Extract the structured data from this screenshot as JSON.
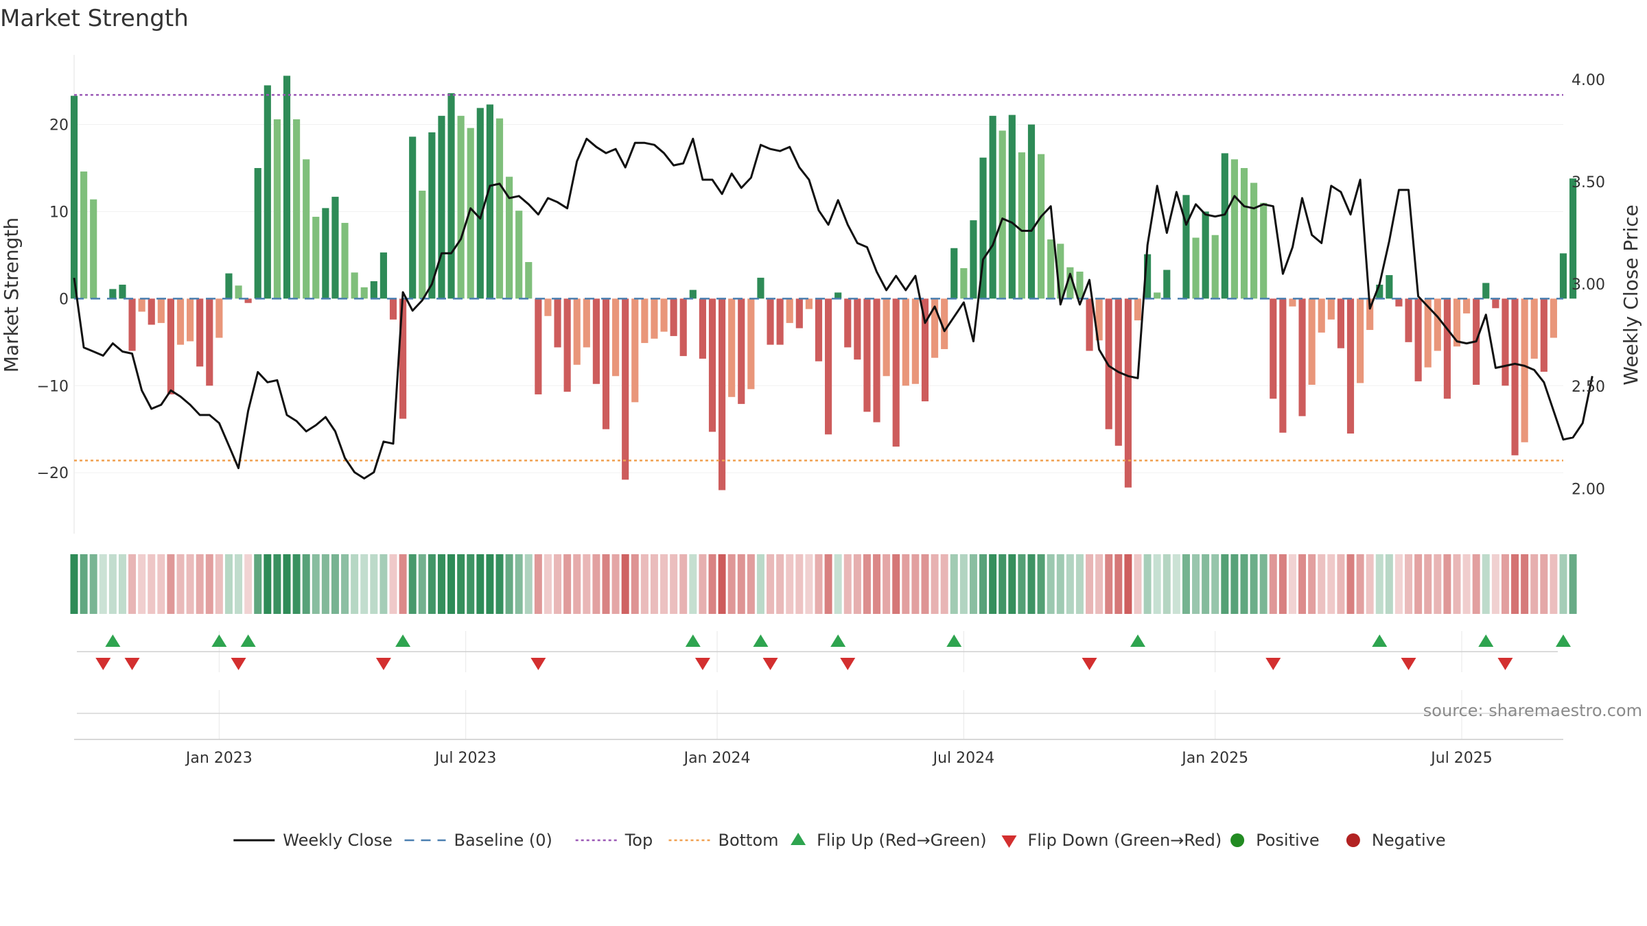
{
  "title": "Market Strength",
  "source": "source: sharemaestro.com",
  "colors": {
    "pos_dark": "#2e8b57",
    "pos_light": "#7fbf7b",
    "neg_dark": "#cd5c5c",
    "neg_light": "#e9967a",
    "line": "#111111",
    "baseline": "#4a7fb0",
    "top": "#9b59b6",
    "bottom": "#f0a050",
    "flip_up": "#2ea44f",
    "flip_down": "#d32f2f",
    "positive": "#228b22",
    "negative": "#b22222"
  },
  "chart_data": {
    "type": "bar",
    "title": "Market Strength",
    "ylabel": "Market Strength",
    "y2label": "Weekly Close Price",
    "ylim": [
      -27,
      28
    ],
    "y2lim": [
      1.78,
      4.12
    ],
    "yticks": [
      20,
      10,
      0,
      -10,
      -20
    ],
    "ytick_labels": [
      "20",
      "10",
      "0",
      "−10",
      "−20"
    ],
    "y2ticks": [
      4.0,
      3.5,
      3.0,
      2.5,
      2.0
    ],
    "y2tick_labels": [
      "4.00",
      "3.50",
      "3.00",
      "2.50",
      "2.00"
    ],
    "top_level": 23.4,
    "bottom_level": -18.6,
    "baseline_level": 0,
    "weeks": 155,
    "x_ticks": [
      {
        "label": "Jan 2023",
        "week": 15
      },
      {
        "label": "Jul 2023",
        "week": 40.5
      },
      {
        "label": "Jan 2024",
        "week": 66.5
      },
      {
        "label": "Jul 2024",
        "week": 92
      },
      {
        "label": "Jan 2025",
        "week": 118
      },
      {
        "label": "Jul 2025",
        "week": 143.5
      }
    ],
    "strength": [
      23.3,
      14.6,
      11.4,
      0,
      1.1,
      1.6,
      -6,
      -1.5,
      -3,
      -2.8,
      -11,
      -5.3,
      -4.9,
      -7.8,
      -10,
      -4.5,
      2.9,
      1.5,
      -0.5,
      15,
      24.5,
      20.6,
      25.6,
      20.6,
      16,
      9.4,
      10.4,
      11.7,
      8.7,
      3,
      1.3,
      2,
      5.3,
      -2.4,
      -13.8,
      18.6,
      12.4,
      19.1,
      21,
      23.6,
      21,
      19.6,
      21.9,
      22.3,
      20.7,
      14,
      10.1,
      4.2,
      -11,
      -2,
      -5.6,
      -10.7,
      -7.6,
      -5.6,
      -9.8,
      -15,
      -8.9,
      -20.8,
      -11.9,
      -5.1,
      -4.6,
      -3.8,
      -4.3,
      -6.6,
      1,
      -6.9,
      -15.3,
      -22,
      -11.3,
      -12.1,
      -10.4,
      2.4,
      -5.3,
      -5.3,
      -2.8,
      -3.4,
      -1.2,
      -7.2,
      -15.6,
      0.7,
      -5.6,
      -7,
      -13,
      -14.2,
      -8.9,
      -17,
      -10,
      -9.8,
      -11.8,
      -6.8,
      -5.8,
      5.8,
      3.5,
      9,
      16.2,
      21,
      19.3,
      21.1,
      16.8,
      20,
      16.6,
      6.8,
      6.3,
      3.6,
      3.1,
      -6,
      -4.8,
      -15,
      -16.9,
      -21.7,
      -2.5,
      5.1,
      0.7,
      3.3,
      0,
      11.9,
      7,
      10,
      7.3,
      16.7,
      16,
      15,
      13.3,
      11,
      -11.5,
      -15.4,
      -0.9,
      -13.5,
      -9.9,
      -3.9,
      -2.4,
      -5.7,
      -15.5,
      -9.7,
      -3.6,
      1.6,
      2.7,
      -0.9,
      -5,
      -9.5,
      -7.9,
      -6,
      -11.5,
      -5.5,
      -1.7,
      -9.9,
      1.8,
      -1.1,
      -10,
      -18,
      -16.5,
      -6.9,
      -8.4,
      -4.5,
      5.2,
      13.8
    ],
    "weekly_close": [
      3.03,
      2.69,
      2.67,
      2.65,
      2.71,
      2.67,
      2.66,
      2.48,
      2.39,
      2.41,
      2.48,
      2.45,
      2.41,
      2.36,
      2.36,
      2.32,
      2.21,
      2.1,
      2.38,
      2.57,
      2.52,
      2.53,
      2.36,
      2.33,
      2.28,
      2.31,
      2.35,
      2.28,
      2.15,
      2.08,
      2.05,
      2.08,
      2.23,
      2.22,
      2.96,
      2.87,
      2.92,
      3.0,
      3.15,
      3.15,
      3.22,
      3.37,
      3.32,
      3.48,
      3.49,
      3.42,
      3.43,
      3.39,
      3.34,
      3.42,
      3.4,
      3.37,
      3.6,
      3.71,
      3.67,
      3.64,
      3.66,
      3.57,
      3.69,
      3.69,
      3.68,
      3.64,
      3.58,
      3.59,
      3.71,
      3.51,
      3.51,
      3.44,
      3.54,
      3.47,
      3.52,
      3.68,
      3.66,
      3.65,
      3.67,
      3.57,
      3.51,
      3.36,
      3.29,
      3.41,
      3.29,
      3.2,
      3.18,
      3.06,
      2.97,
      3.04,
      2.97,
      3.04,
      2.81,
      2.89,
      2.77,
      2.84,
      2.91,
      2.72,
      3.12,
      3.19,
      3.32,
      3.3,
      3.26,
      3.26,
      3.33,
      3.38,
      2.9,
      3.05,
      2.9,
      3.02,
      2.68,
      2.6,
      2.57,
      2.55,
      2.54,
      3.19,
      3.48,
      3.25,
      3.45,
      3.29,
      3.39,
      3.34,
      3.33,
      3.34,
      3.43,
      3.38,
      3.37,
      3.39,
      3.38,
      3.05,
      3.18,
      3.42,
      3.24,
      3.2,
      3.48,
      3.45,
      3.34,
      3.51,
      2.88,
      3.0,
      3.21,
      3.46,
      3.46,
      2.94,
      2.89,
      2.84,
      2.78,
      2.72,
      2.71,
      2.72,
      2.85,
      2.59,
      2.6,
      2.61,
      2.6,
      2.58,
      2.52,
      2.38,
      2.24,
      2.25,
      2.32,
      2.55
    ],
    "flip_up_weeks": [
      4,
      15,
      18,
      34,
      64,
      71,
      79,
      91,
      110,
      135,
      146,
      154
    ],
    "flip_down_weeks": [
      3,
      6,
      17,
      32,
      48,
      65,
      72,
      80,
      105,
      124,
      138,
      148
    ],
    "legend": [
      {
        "label": "Weekly Close",
        "kind": "line"
      },
      {
        "label": "Baseline (0)",
        "kind": "dash"
      },
      {
        "label": "Top",
        "kind": "dot-purple"
      },
      {
        "label": "Bottom",
        "kind": "dot-orange"
      },
      {
        "label": "Flip Up (Red→Green)",
        "kind": "tri-up"
      },
      {
        "label": "Flip Down (Green→Red)",
        "kind": "tri-down"
      },
      {
        "label": "Positive",
        "kind": "circle-pos"
      },
      {
        "label": "Negative",
        "kind": "circle-neg"
      }
    ]
  }
}
